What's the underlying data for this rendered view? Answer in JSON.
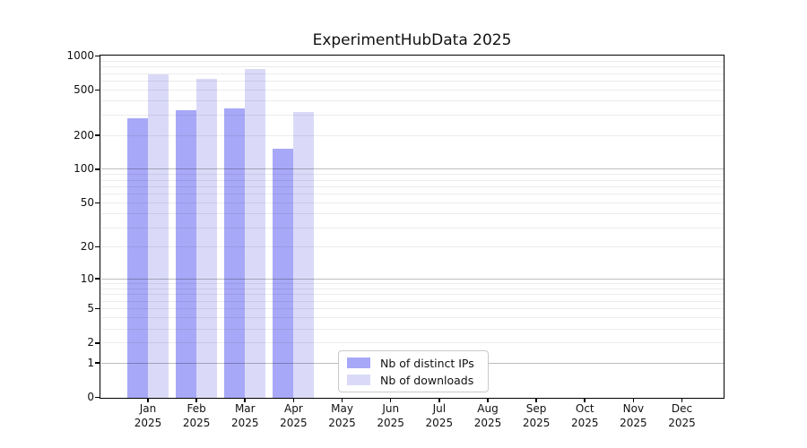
{
  "chart_data": {
    "type": "bar",
    "title": "ExperimentHubData 2025",
    "months": [
      "Jan",
      "Feb",
      "Mar",
      "Apr",
      "May",
      "Jun",
      "Jul",
      "Aug",
      "Sep",
      "Oct",
      "Nov",
      "Dec"
    ],
    "year_label": "2025",
    "series": [
      {
        "name": "Nb of distinct IPs",
        "color": "#a8a8f8",
        "values": [
          285,
          334,
          344,
          151,
          0,
          0,
          0,
          0,
          0,
          0,
          0,
          0
        ]
      },
      {
        "name": "Nb of downloads",
        "color": "#dadaf8",
        "values": [
          691,
          631,
          770,
          322,
          0,
          0,
          0,
          0,
          0,
          0,
          0,
          0
        ]
      }
    ],
    "y_ticks": [
      0,
      1,
      2,
      5,
      10,
      20,
      50,
      100,
      200,
      500,
      1000
    ],
    "y_scale": "log1p",
    "ylim": [
      0,
      1000
    ],
    "grid": "horizontal",
    "minor_grid_values": [
      2,
      3,
      4,
      5,
      6,
      7,
      8,
      9,
      20,
      30,
      40,
      50,
      60,
      70,
      80,
      90,
      200,
      300,
      400,
      500,
      600,
      700,
      800,
      900
    ],
    "decade_grid_values": [
      1,
      10,
      100
    ],
    "legend_position": "inside-bottom-center",
    "colors": {
      "background": "#ffffff",
      "frame": "#000000",
      "minor_gridline": "#ececec",
      "decade_gridline": "#bdbdbd",
      "text": "#111111"
    }
  }
}
